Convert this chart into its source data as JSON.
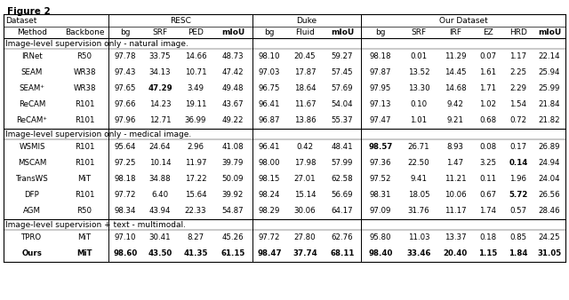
{
  "col_headers_row2": [
    "Method",
    "Backbone",
    "bg",
    "SRF",
    "PED",
    "mIoU",
    "bg",
    "Fluid",
    "mIoU",
    "bg",
    "SRF",
    "IRF",
    "EZ",
    "HRD",
    "mIoU"
  ],
  "section1_title": "Image-level supervision only - natural image.",
  "section1_rows": [
    [
      "IRNet",
      "R50",
      "97.78",
      "33.75",
      "14.66",
      "48.73",
      "98.10",
      "20.45",
      "59.27",
      "98.18",
      "0.01",
      "11.29",
      "0.07",
      "1.17",
      "22.14"
    ],
    [
      "SEAM",
      "WR38",
      "97.43",
      "34.13",
      "10.71",
      "47.42",
      "97.03",
      "17.87",
      "57.45",
      "97.87",
      "13.52",
      "14.45",
      "1.61",
      "2.25",
      "25.94"
    ],
    [
      "SEAM⁺",
      "WR38",
      "97.65",
      "47.29",
      "3.49",
      "49.48",
      "96.75",
      "18.64",
      "57.69",
      "97.95",
      "13.30",
      "14.68",
      "1.71",
      "2.29",
      "25.99"
    ],
    [
      "ReCAM",
      "R101",
      "97.66",
      "14.23",
      "19.11",
      "43.67",
      "96.41",
      "11.67",
      "54.04",
      "97.13",
      "0.10",
      "9.42",
      "1.02",
      "1.54",
      "21.84"
    ],
    [
      "ReCAM⁺",
      "R101",
      "97.96",
      "12.71",
      "36.99",
      "49.22",
      "96.87",
      "13.86",
      "55.37",
      "97.47",
      "1.01",
      "9.21",
      "0.68",
      "0.72",
      "21.82"
    ]
  ],
  "section2_title": "Image-level supervision only - medical image.",
  "section2_rows": [
    [
      "WSMIS",
      "R101",
      "95.64",
      "24.64",
      "2.96",
      "41.08",
      "96.41",
      "0.42",
      "48.41",
      "98.57",
      "26.71",
      "8.93",
      "0.08",
      "0.17",
      "26.89"
    ],
    [
      "MSCAM",
      "R101",
      "97.25",
      "10.14",
      "11.97",
      "39.79",
      "98.00",
      "17.98",
      "57.99",
      "97.36",
      "22.50",
      "1.47",
      "3.25",
      "0.14",
      "24.94"
    ],
    [
      "TransWS",
      "MiT",
      "98.18",
      "34.88",
      "17.22",
      "50.09",
      "98.15",
      "27.01",
      "62.58",
      "97.52",
      "9.41",
      "11.21",
      "0.11",
      "1.96",
      "24.04"
    ],
    [
      "DFP",
      "R101",
      "97.72",
      "6.40",
      "15.64",
      "39.92",
      "98.24",
      "15.14",
      "56.69",
      "98.31",
      "18.05",
      "10.06",
      "0.67",
      "5.72",
      "26.56"
    ],
    [
      "AGM",
      "R50",
      "98.34",
      "43.94",
      "22.33",
      "54.87",
      "98.29",
      "30.06",
      "64.17",
      "97.09",
      "31.76",
      "11.17",
      "1.74",
      "0.57",
      "28.46"
    ]
  ],
  "section3_title": "Image-level supervision + text - multimodal.",
  "section3_rows": [
    [
      "TPRO",
      "MiT",
      "97.10",
      "30.41",
      "8.27",
      "45.26",
      "97.72",
      "27.80",
      "62.76",
      "95.80",
      "11.03",
      "13.37",
      "0.18",
      "0.85",
      "24.25"
    ],
    [
      "Ours",
      "MiT",
      "98.60",
      "43.50",
      "41.35",
      "61.15",
      "98.47",
      "37.74",
      "68.11",
      "98.40",
      "33.46",
      "20.40",
      "1.15",
      "1.84",
      "31.05"
    ]
  ],
  "fig_title": "Figure 2",
  "bg_color": "#ffffff",
  "text_color": "#000000"
}
